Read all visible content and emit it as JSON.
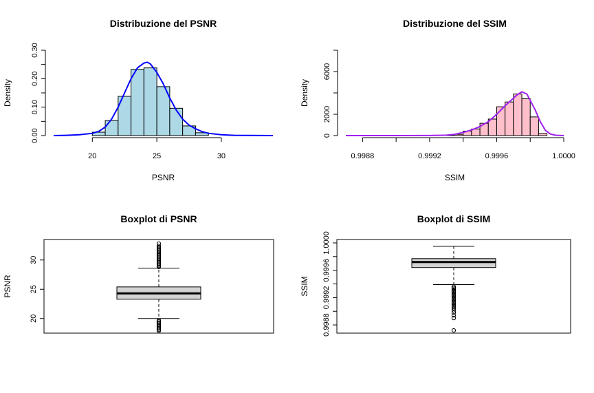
{
  "colors": {
    "psnr_fill": "#ADD8E6",
    "psnr_line": "#0000FF",
    "ssim_fill": "#FFC0CB",
    "ssim_line": "#A020F0",
    "box_fill": "#D3D3D3"
  },
  "chart_data": [
    {
      "type": "histogram",
      "title": "Distribuzione del PSNR",
      "xlabel": "PSNR",
      "ylabel": "Density",
      "xlim": [
        17,
        34
      ],
      "ylim": [
        0,
        0.3
      ],
      "xticks": [
        20,
        25,
        30
      ],
      "xtick_labels": [
        "20",
        "25",
        "30"
      ],
      "yticks": [
        0,
        0.1,
        0.2,
        0.3
      ],
      "ytick_labels": [
        "0.00",
        "0.10",
        "0.20",
        "0.30"
      ],
      "ytick_minor": [
        0.05,
        0.15,
        0.25
      ],
      "bins": [
        {
          "x0": 20,
          "x1": 21,
          "density": 0.012
        },
        {
          "x0": 21,
          "x1": 22,
          "density": 0.053
        },
        {
          "x0": 22,
          "x1": 23,
          "density": 0.138
        },
        {
          "x0": 23,
          "x1": 24,
          "density": 0.233
        },
        {
          "x0": 24,
          "x1": 25,
          "density": 0.238
        },
        {
          "x0": 25,
          "x1": 26,
          "density": 0.172
        },
        {
          "x0": 26,
          "x1": 27,
          "density": 0.096
        },
        {
          "x0": 27,
          "x1": 28,
          "density": 0.034
        },
        {
          "x0": 28,
          "x1": 29,
          "density": 0.01
        }
      ],
      "density_curve": {
        "x": [
          17,
          18,
          19,
          20,
          20.5,
          21,
          21.5,
          22,
          22.5,
          23,
          23.5,
          24,
          24.25,
          24.5,
          25,
          25.5,
          26,
          26.5,
          27,
          27.5,
          28,
          28.5,
          29,
          30,
          31,
          32,
          33,
          34
        ],
        "y": [
          0,
          0.001,
          0.003,
          0.008,
          0.015,
          0.03,
          0.058,
          0.1,
          0.15,
          0.2,
          0.238,
          0.255,
          0.258,
          0.252,
          0.222,
          0.182,
          0.132,
          0.09,
          0.058,
          0.037,
          0.024,
          0.014,
          0.008,
          0.003,
          0.001,
          0.0005,
          0.0002,
          0
        ]
      }
    },
    {
      "type": "histogram",
      "title": "Distribuzione del SSIM",
      "xlabel": "SSIM",
      "ylabel": "Density",
      "xlim": [
        0.9987,
        1.0
      ],
      "ylim": [
        0,
        8000
      ],
      "xticks": [
        0.9988,
        0.999,
        0.9992,
        0.9994,
        0.9996,
        0.9998,
        1.0
      ],
      "xtick_labels": [
        "0.9988",
        "",
        "0.9992",
        "",
        "0.9996",
        "",
        "1.0000"
      ],
      "yticks": [
        0,
        2000,
        4000,
        6000
      ],
      "ytick_labels": [
        "0",
        "2000",
        "",
        "6000"
      ],
      "ytick_minor": [
        8000
      ],
      "bins": [
        {
          "x0": 0.9993,
          "x1": 0.99935,
          "density": 10
        },
        {
          "x0": 0.99935,
          "x1": 0.9994,
          "density": 120
        },
        {
          "x0": 0.9994,
          "x1": 0.99945,
          "density": 420
        },
        {
          "x0": 0.99945,
          "x1": 0.9995,
          "density": 620
        },
        {
          "x0": 0.9995,
          "x1": 0.99955,
          "density": 1150
        },
        {
          "x0": 0.99955,
          "x1": 0.9996,
          "density": 1550
        },
        {
          "x0": 0.9996,
          "x1": 0.99965,
          "density": 2700
        },
        {
          "x0": 0.99965,
          "x1": 0.9997,
          "density": 3150
        },
        {
          "x0": 0.9997,
          "x1": 0.99975,
          "density": 3900
        },
        {
          "x0": 0.99975,
          "x1": 0.9998,
          "density": 3450
        },
        {
          "x0": 0.9998,
          "x1": 0.99985,
          "density": 1750
        },
        {
          "x0": 0.99985,
          "x1": 0.9999,
          "density": 200
        }
      ],
      "density_curve": {
        "x": [
          0.9987,
          0.999,
          0.9992,
          0.9993,
          0.99935,
          0.9994,
          0.99945,
          0.9995,
          0.99955,
          0.9996,
          0.99965,
          0.9997,
          0.99972,
          0.99975,
          0.99978,
          0.9998,
          0.99983,
          0.99986,
          0.99989,
          0.99992,
          0.99995,
          1.0
        ],
        "y": [
          0,
          0,
          5,
          40,
          120,
          300,
          520,
          850,
          1300,
          2000,
          2800,
          3500,
          3800,
          4100,
          3900,
          3300,
          2400,
          1300,
          500,
          150,
          30,
          0
        ]
      }
    },
    {
      "type": "boxplot",
      "title": "Boxplot di PSNR",
      "ylabel": "PSNR",
      "ylim": [
        17.5,
        33.5
      ],
      "yticks": [
        20,
        25,
        30
      ],
      "ytick_labels": [
        "20",
        "25",
        "30"
      ],
      "stats": {
        "min": 20.0,
        "q1": 23.3,
        "median": 24.3,
        "q3": 25.4,
        "max": 28.6
      },
      "outliers": [
        17.9,
        18.1,
        18.3,
        18.5,
        18.7,
        18.9,
        19.1,
        19.3,
        19.5,
        19.7,
        28.8,
        29.0,
        29.2,
        29.4,
        29.6,
        29.8,
        30.0,
        30.2,
        30.4,
        30.6,
        30.8,
        31.0,
        31.2,
        31.4,
        31.6,
        31.8,
        32.0,
        32.2,
        32.4,
        32.8
      ]
    },
    {
      "type": "boxplot",
      "title": "Boxplot di SSIM",
      "ylabel": "SSIM",
      "ylim": [
        0.99868,
        1.00005
      ],
      "yticks": [
        0.9988,
        0.999,
        0.9992,
        0.9994,
        0.9996,
        0.9998,
        1.0
      ],
      "ytick_labels": [
        "0.9988",
        "",
        "0.9992",
        "",
        "0.9996",
        "",
        "1.0000"
      ],
      "stats": {
        "min": 0.99939,
        "q1": 0.99964,
        "median": 0.99972,
        "q3": 0.99977,
        "max": 0.99995
      },
      "outliers": [
        0.99872,
        0.9989,
        0.99894,
        0.99898,
        0.99901,
        0.99904,
        0.99906,
        0.99908,
        0.9991,
        0.99912,
        0.99914,
        0.99916,
        0.99918,
        0.9992,
        0.99922,
        0.99924,
        0.99926,
        0.99928,
        0.9993,
        0.99932,
        0.99934,
        0.99936
      ]
    }
  ]
}
